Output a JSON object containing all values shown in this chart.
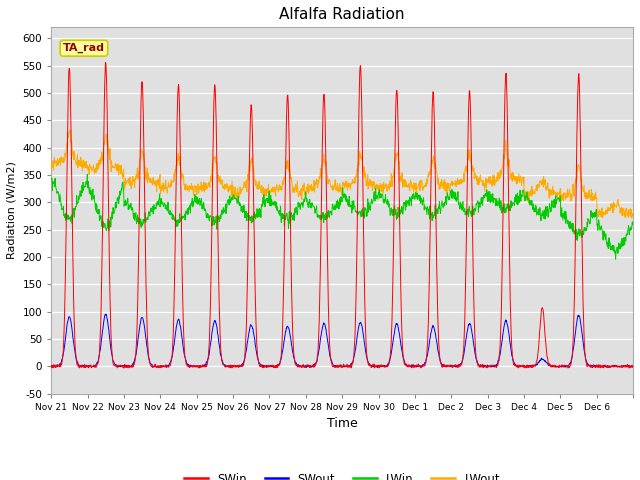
{
  "title": "Alfalfa Radiation",
  "xlabel": "Time",
  "ylabel": "Radiation (W/m2)",
  "ylim": [
    -50,
    620
  ],
  "background_color": "#e0e0e0",
  "legend_labels": [
    "SWin",
    "SWout",
    "LWin",
    "LWout"
  ],
  "legend_colors": [
    "#ff0000",
    "#0000ff",
    "#00cc00",
    "#ffaa00"
  ],
  "annotation_text": "TA_rad",
  "annotation_bg": "#ffff99",
  "annotation_border": "#cccc00",
  "annotation_text_color": "#990000",
  "n_days": 16,
  "time_labels": [
    "Nov 21",
    "Nov 22",
    "Nov 23",
    "Nov 24",
    "Nov 25",
    "Nov 26",
    "Nov 27",
    "Nov 28",
    "Nov 29",
    "Nov 30",
    "Dec 1",
    "Dec 2",
    "Dec 3",
    "Dec 4",
    "Dec 5",
    "Dec 6"
  ],
  "SWin_peaks": [
    545,
    555,
    522,
    515,
    515,
    478,
    497,
    500,
    550,
    507,
    503,
    505,
    535,
    107,
    535,
    0
  ],
  "SWout_peaks": [
    90,
    95,
    90,
    85,
    83,
    75,
    73,
    78,
    80,
    78,
    73,
    78,
    83,
    13,
    93,
    0
  ],
  "LWin_base": [
    355,
    340,
    310,
    310,
    315,
    315,
    310,
    310,
    320,
    320,
    320,
    320,
    320,
    315,
    290,
    270
  ],
  "LWout_base": [
    370,
    360,
    335,
    325,
    325,
    320,
    320,
    325,
    330,
    328,
    328,
    335,
    340,
    315,
    310,
    278
  ],
  "LWin_day": [
    270,
    255,
    265,
    265,
    265,
    270,
    268,
    272,
    278,
    278,
    278,
    280,
    285,
    278,
    240,
    210
  ]
}
